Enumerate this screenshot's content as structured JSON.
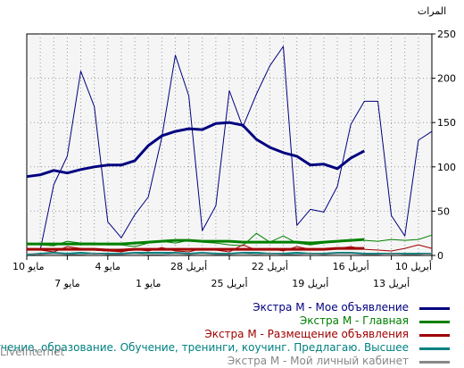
{
  "chart_data": {
    "type": "line",
    "ylabel": "المرات",
    "ylim": [
      0,
      250
    ],
    "y_ticks": [
      0,
      50,
      100,
      150,
      200,
      250
    ],
    "grid": true,
    "x_ticks_top": [
      "10 مايو",
      "4 مايو",
      "28 أبريل",
      "22 أبريل",
      "16 أبريل",
      "10 أبريل"
    ],
    "x_ticks_bottom": [
      "7 مايو",
      "1 مايو",
      "25 أبريل",
      "19 أبريل",
      "13 أبريل"
    ],
    "series": [
      {
        "name": "Экстра М - Мое объявление",
        "color": "#000080",
        "width": 1,
        "values": [
          null,
          6,
          80,
          112,
          208,
          168,
          38,
          20,
          46,
          66,
          133,
          226,
          180,
          28,
          56,
          186,
          145,
          182,
          214,
          236,
          34,
          52,
          49,
          78,
          148,
          174,
          174,
          45,
          22,
          130,
          140
        ]
      },
      {
        "name": "Экстра М - Мое объявление",
        "color": "#000080",
        "width": 3,
        "values": [
          89,
          91,
          96,
          93,
          97,
          100,
          102,
          102,
          107,
          124,
          135,
          140,
          143,
          142,
          149,
          150,
          147,
          131,
          122,
          116,
          112,
          102,
          103,
          98,
          110,
          118,
          null,
          null,
          null,
          null,
          null
        ]
      },
      {
        "name": "Экстра М - Главная",
        "color": "#008000",
        "width": 1,
        "values": [
          14,
          12,
          11,
          16,
          14,
          14,
          12,
          12,
          10,
          14,
          16,
          14,
          17,
          15,
          14,
          12,
          11,
          25,
          15,
          22,
          14,
          12,
          14,
          16,
          18,
          17,
          16,
          18,
          17,
          18,
          23
        ]
      },
      {
        "name": "Экстра М - Главная",
        "color": "#008000",
        "width": 3,
        "values": [
          13,
          13,
          13,
          13,
          13,
          13,
          13,
          13,
          14,
          15,
          16,
          17,
          17,
          16,
          16,
          16,
          15,
          15,
          15,
          15,
          15,
          14,
          15,
          16,
          17,
          18,
          null,
          null,
          null,
          null,
          null
        ]
      },
      {
        "name": "Экстра М - Размещение объявления",
        "color": "#a00000",
        "width": 1,
        "values": [
          8,
          6,
          4,
          10,
          8,
          6,
          5,
          4,
          7,
          5,
          9,
          5,
          4,
          8,
          6,
          4,
          12,
          6,
          8,
          5,
          10,
          7,
          6,
          8,
          10,
          7,
          6,
          5,
          8,
          12,
          8
        ]
      },
      {
        "name": "Экстра М - Размещение объявления",
        "color": "#a00000",
        "width": 3,
        "values": [
          7,
          7,
          7,
          7,
          7,
          7,
          6,
          6,
          7,
          7,
          7,
          7,
          7,
          7,
          7,
          7,
          7,
          7,
          7,
          7,
          7,
          7,
          7,
          8,
          8,
          8,
          null,
          null,
          null,
          null,
          null
        ]
      },
      {
        "name": "Обучение, образование. Обучение, тренинги, коучинг. Предлагаю. Высшее",
        "color": "#008080",
        "width": 2,
        "values": [
          1,
          2,
          3,
          2,
          3,
          2,
          2,
          2,
          3,
          3,
          3,
          3,
          2,
          3,
          2,
          2,
          3,
          3,
          2,
          2,
          3,
          2,
          2,
          3,
          3,
          2,
          2,
          2,
          2,
          2,
          2
        ]
      },
      {
        "name": "Экстра М - Мой личный кабинет",
        "color": "#888888",
        "width": 1,
        "values": [
          2,
          1,
          2,
          1,
          1,
          2,
          1,
          1,
          2,
          1,
          1,
          2,
          1,
          2,
          1,
          1,
          2,
          1,
          2,
          1,
          1,
          2,
          1,
          2,
          2,
          1,
          1,
          2,
          1,
          1,
          2
        ]
      }
    ]
  },
  "legend": [
    {
      "label": "Экстра М - Мое объявление",
      "color": "#000080"
    },
    {
      "label": "Экстра М - Главная",
      "color": "#008000"
    },
    {
      "label": "Экстра М - Размещение объявления",
      "color": "#a00000"
    },
    {
      "label": "Обучение, образование. Обучение, тренинги, коучинг. Предлагаю. Высшее",
      "color": "#008080"
    },
    {
      "label": "Экстра М - Мой личный кабинет",
      "color": "#888888"
    }
  ],
  "brand": "LiveInternet"
}
